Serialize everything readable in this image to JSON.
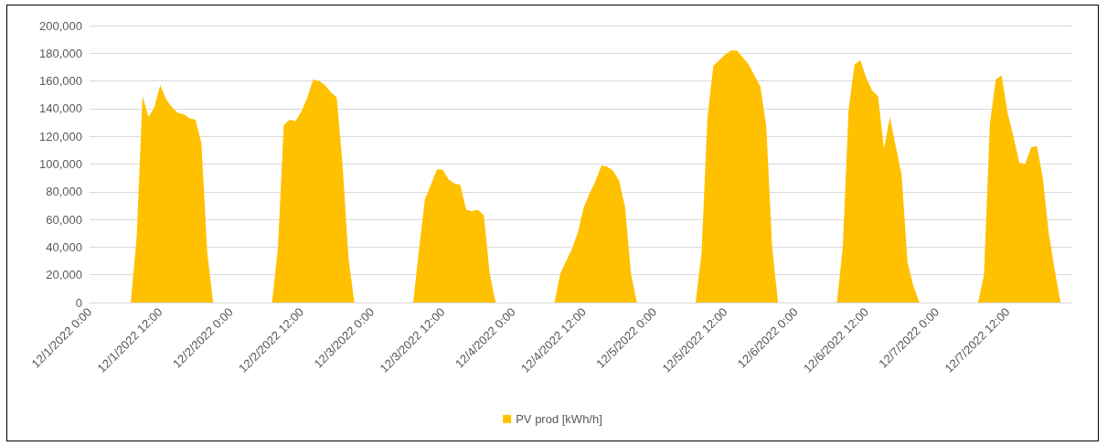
{
  "chart_data": {
    "type": "area",
    "xlim": [
      "2022-12-01T00:00",
      "2022-12-07T23:00"
    ],
    "xticks": [
      {
        "value": "2022-12-01T00:00",
        "label": "12/1/2022 0:00"
      },
      {
        "value": "2022-12-01T12:00",
        "label": "12/1/2022 12:00"
      },
      {
        "value": "2022-12-02T00:00",
        "label": "12/2/2022 0:00"
      },
      {
        "value": "2022-12-02T12:00",
        "label": "12/2/2022 12:00"
      },
      {
        "value": "2022-12-03T00:00",
        "label": "12/3/2022 0:00"
      },
      {
        "value": "2022-12-03T12:00",
        "label": "12/3/2022 12:00"
      },
      {
        "value": "2022-12-04T00:00",
        "label": "12/4/2022 0:00"
      },
      {
        "value": "2022-12-04T12:00",
        "label": "12/4/2022 12:00"
      },
      {
        "value": "2022-12-05T00:00",
        "label": "12/5/2022 0:00"
      },
      {
        "value": "2022-12-05T12:00",
        "label": "12/5/2022 12:00"
      },
      {
        "value": "2022-12-06T00:00",
        "label": "12/6/2022 0:00"
      },
      {
        "value": "2022-12-06T12:00",
        "label": "12/6/2022 12:00"
      },
      {
        "value": "2022-12-07T00:00",
        "label": "12/7/2022 0:00"
      },
      {
        "value": "2022-12-07T12:00",
        "label": "12/7/2022 12:00"
      }
    ],
    "ylim": [
      0,
      200000
    ],
    "yticks": [
      {
        "value": 0,
        "label": "0"
      },
      {
        "value": 20000,
        "label": "20,000"
      },
      {
        "value": 40000,
        "label": "40,000"
      },
      {
        "value": 60000,
        "label": "60,000"
      },
      {
        "value": 80000,
        "label": "80,000"
      },
      {
        "value": 100000,
        "label": "100,000"
      },
      {
        "value": 120000,
        "label": "120,000"
      },
      {
        "value": 140000,
        "label": "140,000"
      },
      {
        "value": 160000,
        "label": "160,000"
      },
      {
        "value": 180000,
        "label": "180,000"
      },
      {
        "value": 200000,
        "label": "200,000"
      }
    ],
    "grid": "y",
    "legend": "bottom",
    "marker": "none",
    "series": [
      {
        "name": "PV prod [kWh/h]",
        "color": "#ffc000",
        "x": [
          "2022-12-01T07:00",
          "2022-12-01T08:00",
          "2022-12-01T09:00",
          "2022-12-01T10:00",
          "2022-12-01T11:00",
          "2022-12-01T12:00",
          "2022-12-01T13:00",
          "2022-12-01T14:00",
          "2022-12-01T15:00",
          "2022-12-01T16:00",
          "2022-12-01T17:00",
          "2022-12-01T18:00",
          "2022-12-01T19:00",
          "2022-12-01T20:00",
          "2022-12-01T21:00",
          "2022-12-02T07:00",
          "2022-12-02T08:00",
          "2022-12-02T09:00",
          "2022-12-02T10:00",
          "2022-12-02T11:00",
          "2022-12-02T12:00",
          "2022-12-02T13:00",
          "2022-12-02T14:00",
          "2022-12-02T15:00",
          "2022-12-02T16:00",
          "2022-12-02T17:00",
          "2022-12-02T18:00",
          "2022-12-02T19:00",
          "2022-12-02T20:00",
          "2022-12-02T21:00",
          "2022-12-03T07:00",
          "2022-12-03T08:00",
          "2022-12-03T09:00",
          "2022-12-03T10:00",
          "2022-12-03T11:00",
          "2022-12-03T12:00",
          "2022-12-03T13:00",
          "2022-12-03T14:00",
          "2022-12-03T15:00",
          "2022-12-03T16:00",
          "2022-12-03T17:00",
          "2022-12-03T18:00",
          "2022-12-03T19:00",
          "2022-12-03T20:00",
          "2022-12-03T21:00",
          "2022-12-04T07:00",
          "2022-12-04T08:00",
          "2022-12-04T09:00",
          "2022-12-04T10:00",
          "2022-12-04T11:00",
          "2022-12-04T12:00",
          "2022-12-04T13:00",
          "2022-12-04T14:00",
          "2022-12-04T15:00",
          "2022-12-04T16:00",
          "2022-12-04T17:00",
          "2022-12-04T18:00",
          "2022-12-04T19:00",
          "2022-12-04T20:00",
          "2022-12-04T21:00",
          "2022-12-05T07:00",
          "2022-12-05T08:00",
          "2022-12-05T09:00",
          "2022-12-05T10:00",
          "2022-12-05T11:00",
          "2022-12-05T12:00",
          "2022-12-05T13:00",
          "2022-12-05T14:00",
          "2022-12-05T15:00",
          "2022-12-05T16:00",
          "2022-12-05T17:00",
          "2022-12-05T18:00",
          "2022-12-05T19:00",
          "2022-12-05T20:00",
          "2022-12-05T21:00",
          "2022-12-06T07:00",
          "2022-12-06T08:00",
          "2022-12-06T09:00",
          "2022-12-06T10:00",
          "2022-12-06T11:00",
          "2022-12-06T12:00",
          "2022-12-06T13:00",
          "2022-12-06T14:00",
          "2022-12-06T15:00",
          "2022-12-06T16:00",
          "2022-12-06T17:00",
          "2022-12-06T18:00",
          "2022-12-06T19:00",
          "2022-12-06T20:00",
          "2022-12-06T21:00",
          "2022-12-07T07:00",
          "2022-12-07T08:00",
          "2022-12-07T09:00",
          "2022-12-07T10:00",
          "2022-12-07T11:00",
          "2022-12-07T12:00",
          "2022-12-07T13:00",
          "2022-12-07T14:00",
          "2022-12-07T15:00",
          "2022-12-07T16:00",
          "2022-12-07T17:00",
          "2022-12-07T18:00",
          "2022-12-07T19:00",
          "2022-12-07T20:00",
          "2022-12-07T21:00"
        ],
        "values": [
          0,
          47000,
          149000,
          134000,
          141000,
          157000,
          147000,
          141000,
          137000,
          136000,
          133000,
          132000,
          115000,
          36000,
          0,
          0,
          39000,
          128000,
          132000,
          131000,
          138000,
          148000,
          161000,
          160000,
          157000,
          152000,
          148000,
          99000,
          32000,
          0,
          0,
          39000,
          75000,
          85000,
          96000,
          96000,
          89000,
          86000,
          85000,
          67000,
          66000,
          67000,
          63000,
          21000,
          0,
          0,
          21000,
          30000,
          39000,
          51000,
          69000,
          79000,
          88000,
          99000,
          98000,
          95000,
          88000,
          69000,
          21000,
          0,
          0,
          36000,
          133000,
          171000,
          175000,
          179000,
          182000,
          182000,
          177000,
          172000,
          164000,
          156000,
          127000,
          40000,
          0,
          0,
          40000,
          140000,
          172000,
          175000,
          162000,
          153000,
          149000,
          111000,
          134000,
          113000,
          92000,
          29000,
          12000,
          0,
          0,
          20000,
          129000,
          161000,
          164000,
          137000,
          120000,
          101000,
          100000,
          112000,
          113000,
          90000,
          50000,
          24000,
          0
        ]
      }
    ]
  }
}
